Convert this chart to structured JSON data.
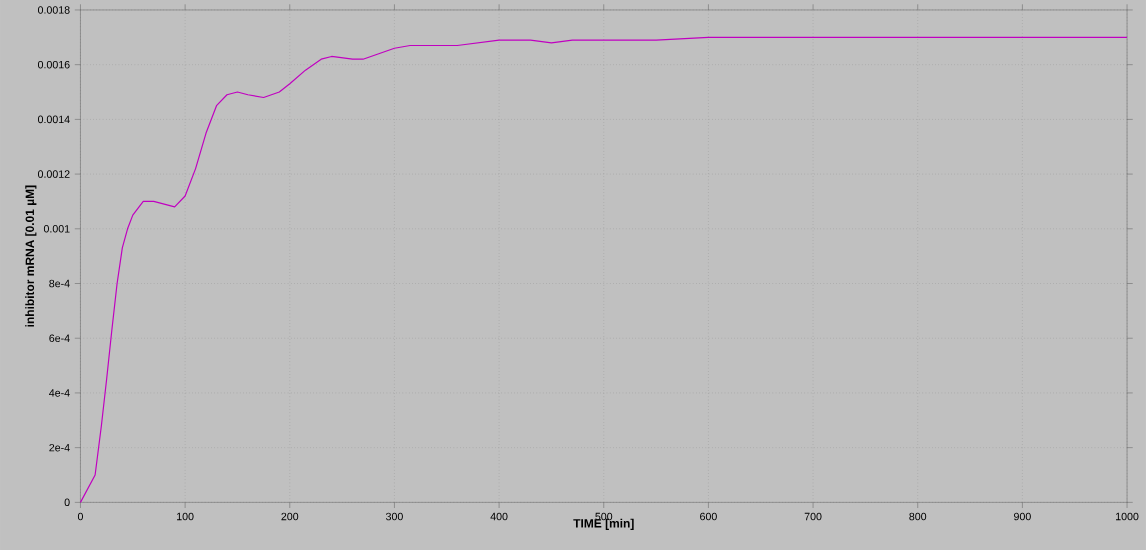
{
  "chart_data": {
    "type": "line",
    "xlabel": "TIME [min]",
    "ylabel": "inhibitor mRNA [0.01 µM]",
    "x": [
      0,
      14,
      20,
      25,
      30,
      35,
      40,
      45,
      50,
      60,
      70,
      80,
      90,
      100,
      110,
      120,
      130,
      140,
      150,
      160,
      175,
      190,
      200,
      215,
      230,
      240,
      260,
      270,
      285,
      300,
      315,
      340,
      360,
      380,
      400,
      430,
      450,
      470,
      500,
      550,
      600,
      1000
    ],
    "series": [
      {
        "color": "#c000c0",
        "values": [
          0,
          0.0001,
          0.00028,
          0.00045,
          0.00063,
          0.0008,
          0.00093,
          0.001,
          0.00105,
          0.0011,
          0.0011,
          0.00109,
          0.00108,
          0.00112,
          0.00122,
          0.00135,
          0.00145,
          0.00149,
          0.0015,
          0.00149,
          0.00148,
          0.0015,
          0.00153,
          0.00158,
          0.00162,
          0.00163,
          0.00162,
          0.00162,
          0.00164,
          0.00166,
          0.00167,
          0.00167,
          0.00167,
          0.00168,
          0.00169,
          0.00169,
          0.00168,
          0.00169,
          0.00169,
          0.00169,
          0.0017,
          0.0017
        ]
      }
    ],
    "xlim": [
      0,
      1000
    ],
    "ylim": [
      0,
      0.0018
    ],
    "xticks": [
      0,
      100,
      200,
      300,
      400,
      500,
      600,
      700,
      800,
      900,
      1000
    ],
    "yticks": [
      0,
      {
        "value": 0.0002,
        "label": "2e-4"
      },
      {
        "value": 0.0004,
        "label": "4e-4"
      },
      {
        "value": 0.0006,
        "label": "6e-4"
      },
      {
        "value": 0.0008,
        "label": "8e-4"
      },
      0.001,
      0.0012,
      0.0014,
      0.0016,
      0.0018
    ],
    "grid": true,
    "marker": "none",
    "line_style": "solid"
  }
}
